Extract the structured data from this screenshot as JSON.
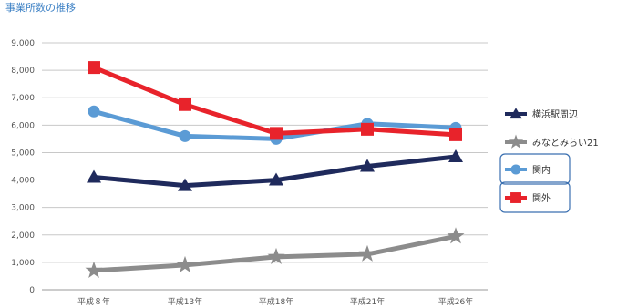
{
  "chart_data": {
    "type": "line",
    "title": "事業所数の推移",
    "xlabel": "",
    "ylabel": "",
    "ylim": [
      0,
      9000
    ],
    "yticks": [
      "0",
      "1,000",
      "2,000",
      "3,000",
      "4,000",
      "5,000",
      "6,000",
      "7,000",
      "8,000",
      "9,000"
    ],
    "categories": [
      "平成８年",
      "平成13年",
      "平成18年",
      "平成21年",
      "平成26年"
    ],
    "grid": true,
    "legend_position": "right",
    "series": [
      {
        "name": "横浜駅周辺",
        "values": [
          4100,
          3800,
          4000,
          4500,
          4850
        ],
        "color": "#1f2a5c",
        "marker": "triangle"
      },
      {
        "name": "みなとみらい21",
        "values": [
          700,
          900,
          1200,
          1300,
          1950
        ],
        "color": "#8c8c8c",
        "marker": "star"
      },
      {
        "name": "関内",
        "values": [
          6500,
          5600,
          5500,
          6050,
          5900
        ],
        "color": "#5b9bd5",
        "marker": "circle"
      },
      {
        "name": "関外",
        "values": [
          8100,
          6750,
          5700,
          5850,
          5650
        ],
        "color": "#e8232b",
        "marker": "square"
      }
    ]
  }
}
